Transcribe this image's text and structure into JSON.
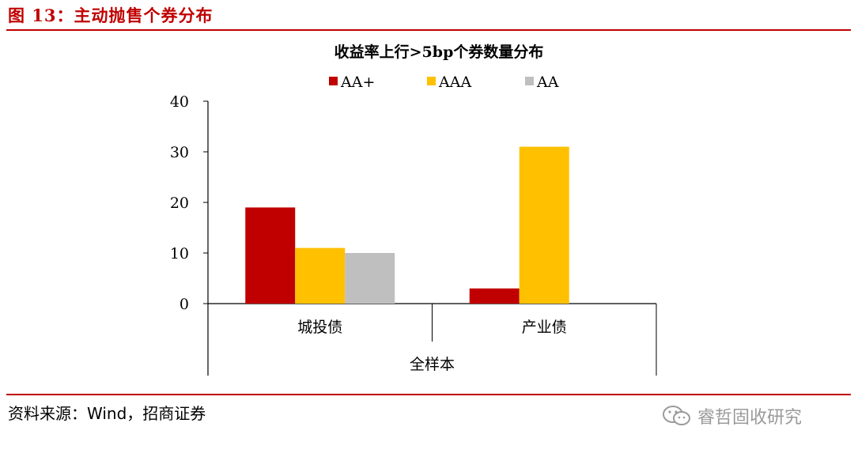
{
  "figure": {
    "label": "图 13：主动抛售个券分布",
    "source": "资料来源：Wind，招商证券",
    "watermark": "睿哲固收研究"
  },
  "colors": {
    "accent": "#c00000",
    "series": [
      "#c00000",
      "#ffc000",
      "#bfbfbf"
    ]
  },
  "chart_data": {
    "type": "bar",
    "title": "收益率上行>5bp个券数量分布",
    "categories": [
      "城投债",
      "产业债"
    ],
    "group_label": "全样本",
    "series": [
      {
        "name": "AA+",
        "values": [
          19,
          3
        ]
      },
      {
        "name": "AAA",
        "values": [
          11,
          31
        ]
      },
      {
        "name": "AA",
        "values": [
          10,
          0
        ]
      }
    ],
    "ylim": [
      0,
      40
    ],
    "yticks": [
      0,
      10,
      20,
      30,
      40
    ],
    "grid": false,
    "legend": "top"
  }
}
